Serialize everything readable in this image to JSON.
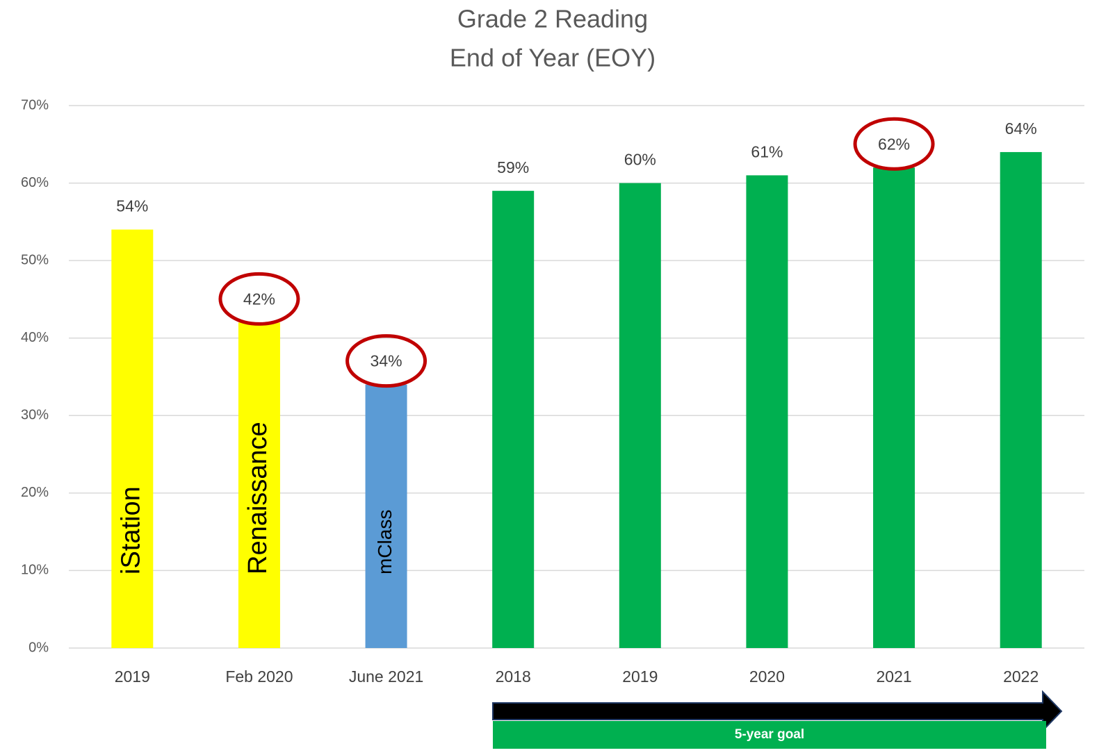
{
  "chart_data": {
    "type": "bar",
    "title": [
      "Grade 2 Reading",
      "End of Year (EOY)"
    ],
    "categories": [
      "2019",
      "Feb 2020",
      "June 2021",
      "2018",
      "2019",
      "2020",
      "2021",
      "2022"
    ],
    "values": [
      54,
      42,
      34,
      59,
      60,
      61,
      62,
      64
    ],
    "value_labels": [
      "54%",
      "42%",
      "34%",
      "59%",
      "60%",
      "61%",
      "62%",
      "64%"
    ],
    "colors": [
      "#ffff00",
      "#ffff00",
      "#5b9bd5",
      "#00b050",
      "#00b050",
      "#00b050",
      "#00b050",
      "#00b050"
    ],
    "ylim": [
      0,
      70
    ],
    "yticks": [
      {
        "value": 0,
        "label": "0%"
      },
      {
        "value": 10,
        "label": "10%"
      },
      {
        "value": 20,
        "label": "20%"
      },
      {
        "value": 30,
        "label": "30%"
      },
      {
        "value": 40,
        "label": "40%"
      },
      {
        "value": 50,
        "label": "50%"
      },
      {
        "value": 60,
        "label": "60%"
      },
      {
        "value": 70,
        "label": "70%"
      }
    ],
    "grid": true,
    "highlighted": [
      1,
      2,
      6
    ],
    "highlight_color": "#c00000",
    "bar_annotations": [
      {
        "bar": 0,
        "text": "iStation"
      },
      {
        "bar": 1,
        "text": "Renaissance"
      },
      {
        "bar": 2,
        "text": "mClass"
      }
    ],
    "goal_label": "5-year goal",
    "goal_color": "#00b050"
  }
}
